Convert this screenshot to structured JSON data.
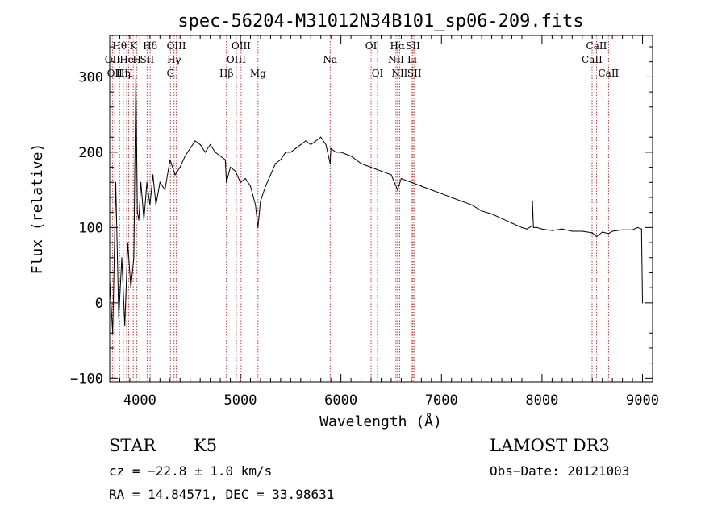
{
  "chart_data": {
    "type": "line",
    "title": "spec-56204-M31012N34B101_sp06-209.fits",
    "xlabel": "Wavelength (Å)",
    "ylabel": "Flux (relative)",
    "xlim": [
      3700,
      9100
    ],
    "ylim": [
      -105,
      355
    ],
    "x_ticks": [
      4000,
      5000,
      6000,
      7000,
      8000,
      9000
    ],
    "x_tick_labels": [
      "4000",
      "5000",
      "6000",
      "7000",
      "8000",
      "9000"
    ],
    "y_ticks": [
      -100,
      0,
      100,
      200,
      300
    ],
    "y_tick_labels": [
      "−100",
      "0",
      "100",
      "200",
      "300"
    ],
    "grid": false,
    "series": [
      {
        "name": "flux",
        "color": "#000000",
        "x": [
          3700,
          3730,
          3760,
          3790,
          3820,
          3850,
          3880,
          3910,
          3940,
          3960,
          3975,
          3990,
          4010,
          4040,
          4070,
          4100,
          4130,
          4160,
          4200,
          4250,
          4300,
          4350,
          4400,
          4450,
          4500,
          4550,
          4600,
          4650,
          4700,
          4750,
          4800,
          4850,
          4861,
          4900,
          4950,
          5000,
          5050,
          5100,
          5150,
          5175,
          5200,
          5250,
          5300,
          5350,
          5400,
          5450,
          5500,
          5550,
          5600,
          5650,
          5700,
          5750,
          5800,
          5850,
          5893,
          5900,
          5950,
          6000,
          6100,
          6200,
          6300,
          6400,
          6500,
          6563,
          6600,
          6700,
          6800,
          6900,
          7000,
          7100,
          7200,
          7300,
          7400,
          7500,
          7600,
          7700,
          7800,
          7850,
          7900,
          7905,
          7915,
          7950,
          8000,
          8100,
          8200,
          8300,
          8400,
          8500,
          8542,
          8600,
          8662,
          8700,
          8800,
          8900,
          8950,
          8990,
          9000
        ],
        "y": [
          30,
          -40,
          160,
          -20,
          60,
          -30,
          80,
          20,
          60,
          300,
          120,
          110,
          160,
          110,
          160,
          130,
          170,
          130,
          160,
          150,
          190,
          170,
          180,
          195,
          205,
          215,
          210,
          200,
          210,
          200,
          195,
          190,
          160,
          180,
          175,
          160,
          165,
          155,
          130,
          100,
          135,
          155,
          170,
          185,
          190,
          200,
          200,
          205,
          210,
          215,
          210,
          215,
          220,
          210,
          185,
          205,
          200,
          200,
          195,
          185,
          180,
          175,
          170,
          150,
          165,
          160,
          155,
          150,
          145,
          140,
          135,
          130,
          122,
          118,
          112,
          106,
          100,
          98,
          102,
          135,
          100,
          100,
          98,
          96,
          98,
          95,
          95,
          93,
          88,
          94,
          92,
          95,
          97,
          97,
          100,
          98,
          0
        ]
      }
    ],
    "line_markers": [
      {
        "wavelength": 3727,
        "label": "OII",
        "row": 2
      },
      {
        "wavelength": 3750,
        "label": "OII",
        "row": 3
      },
      {
        "wavelength": 3798,
        "label": "Hθ",
        "row": 1
      },
      {
        "wavelength": 3835,
        "label": "Hη",
        "row": 3
      },
      {
        "wavelength": 3869,
        "label": "He",
        "row": 2
      },
      {
        "wavelength": 3889,
        "label": "H",
        "row": 3
      },
      {
        "wavelength": 3934,
        "label": "K",
        "row": 1
      },
      {
        "wavelength": 3970,
        "label": "H",
        "row": 2
      },
      {
        "wavelength": 4072,
        "label": "SII",
        "row": 2
      },
      {
        "wavelength": 4102,
        "label": "Hδ",
        "row": 1
      },
      {
        "wavelength": 4304,
        "label": "G",
        "row": 3
      },
      {
        "wavelength": 4340,
        "label": "Hγ",
        "row": 2
      },
      {
        "wavelength": 4363,
        "label": "OIII",
        "row": 1
      },
      {
        "wavelength": 4861,
        "label": "Hβ",
        "row": 3
      },
      {
        "wavelength": 4959,
        "label": "OIII",
        "row": 2
      },
      {
        "wavelength": 5007,
        "label": "OIII",
        "row": 1
      },
      {
        "wavelength": 5175,
        "label": "Mg",
        "row": 3
      },
      {
        "wavelength": 5893,
        "label": "Na",
        "row": 2
      },
      {
        "wavelength": 6300,
        "label": "OI",
        "row": 1
      },
      {
        "wavelength": 6364,
        "label": "OI",
        "row": 3
      },
      {
        "wavelength": 6548,
        "label": "NII",
        "row": 2
      },
      {
        "wavelength": 6563,
        "label": "Hα",
        "row": 1
      },
      {
        "wavelength": 6584,
        "label": "NII",
        "row": 3
      },
      {
        "wavelength": 6708,
        "label": "Li",
        "row": 2
      },
      {
        "wavelength": 6717,
        "label": "SII",
        "row": 1
      },
      {
        "wavelength": 6731,
        "label": "SII",
        "row": 3
      },
      {
        "wavelength": 8498,
        "label": "CaII",
        "row": 2
      },
      {
        "wavelength": 8542,
        "label": "CaII",
        "row": 1
      },
      {
        "wavelength": 8662,
        "label": "CaII",
        "row": 3
      }
    ],
    "marker_color": "#cc3333"
  },
  "info": {
    "object_class": "STAR",
    "subclass": "K5",
    "survey": "LAMOST DR3",
    "cz": "cz = −22.8 ± 1.0 km/s",
    "obs_date": "Obs−Date: 20121003",
    "coords": "RA =  14.84571, DEC =  33.98631"
  }
}
